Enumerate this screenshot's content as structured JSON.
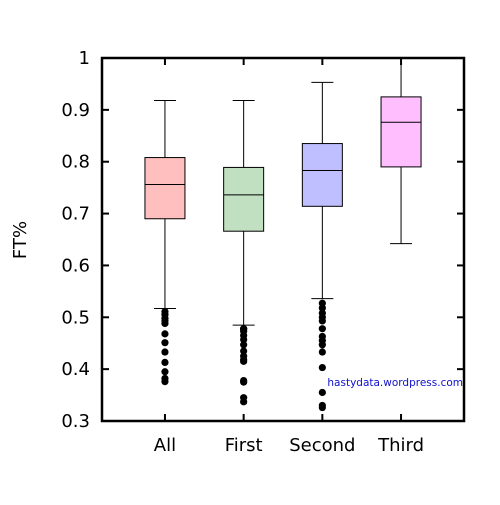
{
  "chart_data": {
    "type": "box",
    "title": "",
    "xlabel": "",
    "ylabel": "FT%",
    "ylim": [
      0.3,
      1.0
    ],
    "yticks": [
      "0.3",
      "0.4",
      "0.5",
      "0.6",
      "0.7",
      "0.8",
      "0.9",
      "1"
    ],
    "grid": false,
    "annotation": "hastydata.wordpress.com",
    "categories": [
      "All",
      "First",
      "Second",
      "Third"
    ],
    "series": [
      {
        "category": "All",
        "color": "#ffbfbf",
        "whisker_low": 0.517,
        "q1": 0.69,
        "median": 0.756,
        "q3": 0.808,
        "whisker_high": 0.918,
        "outliers": [
          0.511,
          0.505,
          0.498,
          0.493,
          0.488,
          0.468,
          0.451,
          0.433,
          0.413,
          0.395,
          0.382,
          0.376
        ]
      },
      {
        "category": "First",
        "color": "#c1dfc1",
        "whisker_low": 0.485,
        "q1": 0.666,
        "median": 0.736,
        "q3": 0.789,
        "whisker_high": 0.918,
        "outliers": [
          0.478,
          0.477,
          0.473,
          0.465,
          0.457,
          0.447,
          0.435,
          0.425,
          0.418,
          0.415,
          0.378,
          0.375,
          0.345,
          0.337
        ]
      },
      {
        "category": "Second",
        "color": "#bfbfff",
        "whisker_low": 0.536,
        "q1": 0.714,
        "median": 0.783,
        "q3": 0.835,
        "whisker_high": 0.953,
        "outliers": [
          0.527,
          0.518,
          0.508,
          0.5,
          0.493,
          0.478,
          0.463,
          0.455,
          0.447,
          0.433,
          0.403,
          0.355,
          0.33,
          0.326
        ]
      },
      {
        "category": "Third",
        "color": "#ffbfff",
        "whisker_low": 0.642,
        "q1": 0.79,
        "median": 0.876,
        "q3": 0.925,
        "whisker_high": 1.0,
        "outliers": []
      }
    ]
  }
}
